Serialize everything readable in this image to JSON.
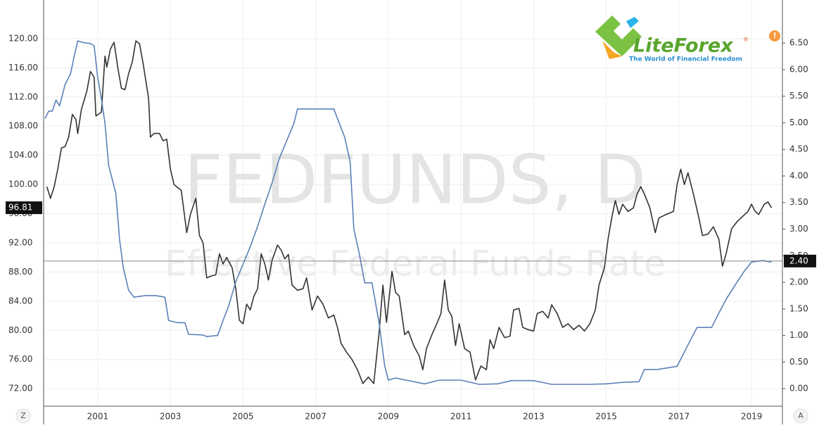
{
  "chart_data": {
    "type": "line",
    "watermark": "FEDFUNDS, D",
    "watermark_subtitle": "Effective Federal Funds Rate",
    "logo": {
      "name": "LiteForex",
      "mark": "®",
      "tagline": "The World of Financial Freedom"
    },
    "alert": "!",
    "buttons": [
      "Z",
      "A"
    ],
    "xlim": [
      1999.51,
      2019.85
    ],
    "xticks": [
      2001,
      2003,
      2005,
      2007,
      2009,
      2011,
      2013,
      2015,
      2017,
      2019
    ],
    "ylim": [
      69.6,
      125.3
    ],
    "yticks": [
      {
        "value": 72,
        "label": "72.00"
      },
      {
        "value": 76,
        "label": "76.00"
      },
      {
        "value": 80,
        "label": "80.00"
      },
      {
        "value": 84,
        "label": "84.00"
      },
      {
        "value": 88,
        "label": "88.00"
      },
      {
        "value": 92,
        "label": "92.00"
      },
      {
        "value": 96,
        "label": "96.00"
      },
      {
        "value": 100,
        "label": "100.00"
      },
      {
        "value": 104,
        "label": "104.00"
      },
      {
        "value": 108,
        "label": "108.00"
      },
      {
        "value": 112,
        "label": "112.00"
      },
      {
        "value": 116,
        "label": "116.00"
      },
      {
        "value": 120,
        "label": "120.00"
      }
    ],
    "y2lim": [
      -0.33,
      7.31
    ],
    "y2ticks": [
      {
        "value": 0,
        "label": "0.00"
      },
      {
        "value": 0.5,
        "label": "0.50"
      },
      {
        "value": 1,
        "label": "1.00"
      },
      {
        "value": 1.5,
        "label": "1.50"
      },
      {
        "value": 2,
        "label": "2.00"
      },
      {
        "value": 2.5,
        "label": "2.50"
      },
      {
        "value": 3,
        "label": "3.00"
      },
      {
        "value": 3.5,
        "label": "3.50"
      },
      {
        "value": 4,
        "label": "4.00"
      },
      {
        "value": 4.5,
        "label": "4.50"
      },
      {
        "value": 5,
        "label": "5.00"
      },
      {
        "value": 5.5,
        "label": "5.50"
      },
      {
        "value": 6,
        "label": "6.00"
      },
      {
        "value": 6.5,
        "label": "6.50"
      }
    ],
    "grid": true,
    "last_values": [
      {
        "value": 96.81,
        "label": "96.81",
        "axis": "y"
      },
      {
        "value": 2.4,
        "label": "2.40",
        "axis": "y2"
      }
    ],
    "series": [
      {
        "color": "#333333",
        "axis": "y",
        "x": [
          1999.6,
          1999.7,
          1999.8,
          1999.9,
          2000.0,
          2000.1,
          2000.2,
          2000.3,
          2000.4,
          2000.45,
          2000.55,
          2000.7,
          2000.8,
          2000.9,
          2000.95,
          2001.1,
          2001.2,
          2001.25,
          2001.35,
          2001.45,
          2001.55,
          2001.65,
          2001.75,
          2001.85,
          2001.95,
          2002.05,
          2002.15,
          2002.25,
          2002.4,
          2002.45,
          2002.55,
          2002.7,
          2002.8,
          2002.9,
          2003.0,
          2003.1,
          2003.3,
          2003.45,
          2003.55,
          2003.7,
          2003.8,
          2003.9,
          2004.0,
          2004.15,
          2004.25,
          2004.35,
          2004.45,
          2004.55,
          2004.7,
          2004.8,
          2004.9,
          2005.0,
          2005.1,
          2005.2,
          2005.3,
          2005.4,
          2005.5,
          2005.6,
          2005.7,
          2005.8,
          2005.95,
          2006.05,
          2006.15,
          2006.25,
          2006.35,
          2006.5,
          2006.65,
          2006.75,
          2006.9,
          2007.05,
          2007.2,
          2007.35,
          2007.5,
          2007.6,
          2007.7,
          2007.85,
          2008.0,
          2008.15,
          2008.3,
          2008.45,
          2008.6,
          2008.75,
          2008.85,
          2008.95,
          2009.1,
          2009.2,
          2009.3,
          2009.45,
          2009.55,
          2009.7,
          2009.85,
          2009.95,
          2010.05,
          2010.2,
          2010.35,
          2010.45,
          2010.55,
          2010.65,
          2010.75,
          2010.85,
          2010.95,
          2011.1,
          2011.25,
          2011.4,
          2011.55,
          2011.7,
          2011.8,
          2011.9,
          2012.05,
          2012.2,
          2012.35,
          2012.45,
          2012.6,
          2012.7,
          2012.85,
          2013.0,
          2013.1,
          2013.25,
          2013.4,
          2013.5,
          2013.65,
          2013.8,
          2013.95,
          2014.1,
          2014.25,
          2014.4,
          2014.55,
          2014.7,
          2014.8,
          2014.95,
          2015.05,
          2015.15,
          2015.25,
          2015.35,
          2015.45,
          2015.6,
          2015.75,
          2015.85,
          2015.95,
          2016.05,
          2016.2,
          2016.35,
          2016.45,
          2016.65,
          2016.85,
          2016.95,
          2017.05,
          2017.15,
          2017.25,
          2017.4,
          2017.55,
          2017.65,
          2017.8,
          2017.95,
          2018.1,
          2018.2,
          2018.3,
          2018.45,
          2018.6,
          2018.75,
          2018.9,
          2019.0,
          2019.1,
          2019.2,
          2019.35,
          2019.45,
          2019.55
        ],
        "values": [
          99.7,
          98.1,
          99.7,
          102.1,
          105.0,
          105.2,
          106.5,
          109.6,
          108.9,
          107.0,
          110.3,
          112.8,
          115.5,
          114.7,
          109.4,
          109.9,
          117.6,
          116.1,
          118.6,
          119.5,
          116.1,
          113.2,
          113.0,
          115.2,
          116.8,
          119.7,
          119.3,
          116.6,
          111.8,
          106.5,
          107.0,
          107.0,
          106.0,
          106.2,
          102.1,
          100.0,
          99.2,
          93.4,
          95.9,
          98.1,
          93.0,
          92.0,
          87.2,
          87.5,
          87.6,
          90.5,
          89.1,
          90.0,
          88.6,
          85.7,
          81.4,
          80.9,
          83.6,
          82.8,
          84.7,
          85.7,
          90.5,
          89.1,
          86.9,
          89.6,
          91.7,
          91.0,
          89.8,
          90.4,
          86.2,
          85.5,
          85.7,
          87.2,
          82.8,
          84.7,
          83.6,
          81.7,
          82.1,
          80.4,
          78.2,
          77.0,
          76.0,
          74.6,
          72.7,
          73.6,
          72.7,
          79.9,
          86.2,
          81.1,
          88.1,
          85.2,
          84.7,
          79.4,
          79.9,
          77.9,
          76.5,
          74.6,
          77.5,
          79.4,
          81.1,
          82.3,
          86.9,
          82.8,
          81.9,
          77.9,
          80.9,
          77.5,
          77.0,
          73.2,
          75.1,
          74.6,
          78.7,
          77.5,
          80.4,
          79.0,
          79.2,
          82.8,
          83.0,
          80.4,
          80.1,
          79.9,
          82.3,
          82.6,
          81.7,
          83.5,
          82.3,
          80.4,
          80.9,
          80.1,
          80.7,
          79.9,
          80.9,
          82.8,
          86.2,
          88.6,
          92.5,
          95.4,
          97.8,
          95.9,
          97.3,
          96.3,
          96.8,
          98.7,
          99.7,
          98.7,
          96.8,
          93.4,
          95.4,
          95.9,
          96.3,
          100.0,
          102.1,
          100.0,
          101.6,
          98.7,
          95.4,
          93.0,
          93.2,
          94.2,
          92.5,
          88.8,
          90.5,
          93.9,
          94.9,
          95.6,
          96.3,
          97.3,
          96.3,
          95.9,
          97.3,
          97.6,
          96.8
        ]
      },
      {
        "color": "#5b80b8",
        "axis": "y2",
        "x": [
          1999.55,
          1999.65,
          1999.75,
          1999.85,
          1999.95,
          2000.1,
          2000.25,
          2000.35,
          2000.45,
          2000.6,
          2000.8,
          2000.9,
          2001.0,
          2001.1,
          2001.2,
          2001.3,
          2001.5,
          2001.6,
          2001.7,
          2001.85,
          2002.0,
          2002.3,
          2002.6,
          2002.85,
          2002.95,
          2003.2,
          2003.4,
          2003.5,
          2003.9,
          2004.0,
          2004.3,
          2004.45,
          2004.6,
          2004.8,
          2005.0,
          2005.2,
          2005.4,
          2005.6,
          2005.8,
          2006.0,
          2006.2,
          2006.4,
          2006.5,
          2007.0,
          2007.5,
          2007.65,
          2007.8,
          2007.95,
          2008.05,
          2008.2,
          2008.35,
          2008.55,
          2008.75,
          2008.9,
          2009.0,
          2009.2,
          2010.0,
          2010.4,
          2011.0,
          2011.5,
          2012.0,
          2012.4,
          2013.0,
          2013.5,
          2014.0,
          2014.5,
          2015.0,
          2015.5,
          2015.9,
          2016.05,
          2016.4,
          2016.95,
          2017.1,
          2017.3,
          2017.5,
          2017.9,
          2018.1,
          2018.3,
          2018.55,
          2018.8,
          2019.0,
          2019.3,
          2019.55
        ],
        "values": [
          5.08,
          5.22,
          5.22,
          5.43,
          5.32,
          5.72,
          5.92,
          6.25,
          6.54,
          6.51,
          6.49,
          6.45,
          5.85,
          5.45,
          4.99,
          4.2,
          3.67,
          2.81,
          2.28,
          1.85,
          1.72,
          1.75,
          1.75,
          1.72,
          1.28,
          1.24,
          1.24,
          1.02,
          1.01,
          0.98,
          1.0,
          1.28,
          1.55,
          2.01,
          2.34,
          2.67,
          3.05,
          3.47,
          3.87,
          4.33,
          4.66,
          4.99,
          5.26,
          5.26,
          5.26,
          4.99,
          4.73,
          4.26,
          3.0,
          2.54,
          1.99,
          1.99,
          1.22,
          0.43,
          0.16,
          0.2,
          0.09,
          0.16,
          0.16,
          0.08,
          0.09,
          0.15,
          0.15,
          0.08,
          0.08,
          0.08,
          0.09,
          0.12,
          0.13,
          0.36,
          0.36,
          0.42,
          0.62,
          0.89,
          1.15,
          1.15,
          1.42,
          1.68,
          1.95,
          2.21,
          2.38,
          2.41,
          2.38
        ]
      }
    ]
  }
}
